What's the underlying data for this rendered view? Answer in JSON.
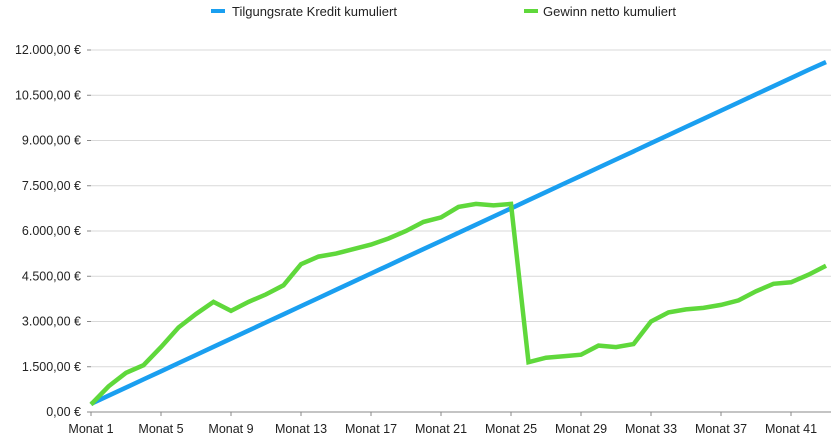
{
  "chart_data": {
    "type": "line",
    "title": "",
    "xlabel": "",
    "ylabel": "",
    "ylim": [
      0,
      12000
    ],
    "yticks": [
      0,
      1500,
      3000,
      4500,
      6000,
      7500,
      9000,
      10500,
      12000
    ],
    "ytick_labels": [
      "0,00 €",
      "1.500,00 €",
      "3.000,00 €",
      "4.500,00 €",
      "6.000,00 €",
      "7.500,00 €",
      "9.000,00 €",
      "10.500,00 €",
      "12.000,00 €"
    ],
    "grid": true,
    "legend": "top",
    "categories": [
      "Monat 1",
      "Monat 2",
      "Monat 3",
      "Monat 4",
      "Monat 5",
      "Monat 6",
      "Monat 7",
      "Monat 8",
      "Monat 9",
      "Monat 10",
      "Monat 11",
      "Monat 12",
      "Monat 13",
      "Monat 14",
      "Monat 15",
      "Monat 16",
      "Monat 17",
      "Monat 18",
      "Monat 19",
      "Monat 20",
      "Monat 21",
      "Monat 22",
      "Monat 23",
      "Monat 24",
      "Monat 25",
      "Monat 26",
      "Monat 27",
      "Monat 28",
      "Monat 29",
      "Monat 30",
      "Monat 31",
      "Monat 32",
      "Monat 33",
      "Monat 34",
      "Monat 35",
      "Monat 36",
      "Monat 37",
      "Monat 38",
      "Monat 39",
      "Monat 40",
      "Monat 41",
      "Monat 42",
      "Monat 43"
    ],
    "shown_x_labels": [
      "Monat 1",
      "Monat 5",
      "Monat 9",
      "Monat 13",
      "Monat 17",
      "Monat 21",
      "Monat 25",
      "Monat 29",
      "Monat 33",
      "Monat 37",
      "Monat 41"
    ],
    "series": [
      {
        "name": "Tilgungsrate Kredit kumuliert",
        "color": "#1a9ff0",
        "values": [
          270,
          540,
          810,
          1080,
          1350,
          1620,
          1890,
          2160,
          2430,
          2700,
          2970,
          3240,
          3510,
          3780,
          4050,
          4320,
          4590,
          4860,
          5130,
          5400,
          5670,
          5940,
          6210,
          6480,
          6750,
          7020,
          7290,
          7560,
          7830,
          8100,
          8370,
          8640,
          8910,
          9180,
          9450,
          9720,
          9990,
          10260,
          10530,
          10800,
          11070,
          11340,
          11600
        ]
      },
      {
        "name": "Gewinn netto kumuliert",
        "color": "#5fd83b",
        "values": [
          250,
          850,
          1300,
          1550,
          2150,
          2800,
          3250,
          3650,
          3350,
          3650,
          3900,
          4200,
          4900,
          5150,
          5250,
          5400,
          5550,
          5750,
          6000,
          6300,
          6450,
          6800,
          6900,
          6850,
          6900,
          1650,
          1800,
          1850,
          1900,
          2200,
          2150,
          2250,
          3000,
          3300,
          3400,
          3450,
          3550,
          3700,
          4000,
          4250,
          4300,
          4550,
          4850
        ]
      }
    ]
  }
}
